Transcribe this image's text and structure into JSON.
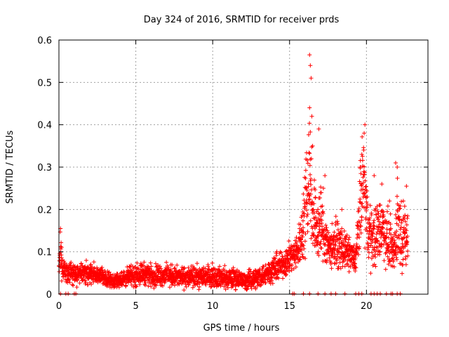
{
  "chart_data": {
    "type": "scatter",
    "title": "Day 324 of 2016, SRMTID for receiver prds",
    "xlabel": "GPS time / hours",
    "ylabel": "SRMTID / TECUs",
    "xlim": [
      0,
      24
    ],
    "ylim": [
      0,
      0.6
    ],
    "x_ticks": [
      0,
      5,
      10,
      15,
      20
    ],
    "x_tick_labels": [
      "0",
      "5",
      "10",
      "15",
      "20"
    ],
    "y_ticks": [
      0,
      0.1,
      0.2,
      0.3,
      0.4,
      0.5,
      0.6
    ],
    "y_tick_labels": [
      "0",
      "0.1",
      "0.2",
      "0.3",
      "0.4",
      "0.5",
      "0.6"
    ],
    "grid": true,
    "marker": "+",
    "series": [
      {
        "name": "SRMTID",
        "color": "#ff0000",
        "envelope": {
          "x": [
            0.0,
            0.1,
            0.2,
            0.5,
            1.0,
            2.0,
            3.0,
            3.5,
            4.0,
            5.0,
            5.5,
            6.0,
            7.0,
            8.0,
            9.0,
            9.8,
            10.5,
            11.0,
            11.5,
            12.0,
            12.5,
            13.0,
            13.5,
            14.0,
            14.5,
            15.0,
            15.5,
            15.9,
            16.1,
            16.3,
            16.5,
            16.8,
            17.0,
            17.3,
            17.6,
            18.0,
            18.3,
            18.7,
            19.0,
            19.3,
            19.6,
            19.8,
            20.0,
            20.3,
            20.6,
            21.0,
            21.4,
            21.8,
            22.0,
            22.3,
            22.6
          ],
          "center": [
            0.05,
            0.11,
            0.06,
            0.05,
            0.045,
            0.05,
            0.04,
            0.03,
            0.035,
            0.045,
            0.05,
            0.045,
            0.045,
            0.04,
            0.04,
            0.045,
            0.04,
            0.035,
            0.04,
            0.03,
            0.035,
            0.04,
            0.05,
            0.06,
            0.07,
            0.085,
            0.1,
            0.16,
            0.25,
            0.3,
            0.2,
            0.15,
            0.17,
            0.13,
            0.11,
            0.12,
            0.11,
            0.1,
            0.09,
            0.08,
            0.2,
            0.28,
            0.18,
            0.13,
            0.14,
            0.16,
            0.13,
            0.1,
            0.17,
            0.14,
            0.13
          ],
          "spread": [
            0.02,
            0.04,
            0.02,
            0.02,
            0.02,
            0.02,
            0.015,
            0.012,
            0.015,
            0.02,
            0.02,
            0.02,
            0.02,
            0.018,
            0.02,
            0.02,
            0.02,
            0.018,
            0.02,
            0.015,
            0.018,
            0.02,
            0.02,
            0.025,
            0.025,
            0.03,
            0.03,
            0.06,
            0.12,
            0.13,
            0.08,
            0.06,
            0.08,
            0.05,
            0.04,
            0.04,
            0.04,
            0.03,
            0.03,
            0.025,
            0.08,
            0.1,
            0.08,
            0.05,
            0.06,
            0.06,
            0.05,
            0.04,
            0.08,
            0.06,
            0.05
          ]
        },
        "points_per_hour": 120,
        "x_range": [
          0.0,
          22.7
        ],
        "peaks": [
          {
            "x": 0.1,
            "y": 0.155
          },
          {
            "x": 16.3,
            "y": 0.565
          },
          {
            "x": 16.35,
            "y": 0.54
          },
          {
            "x": 16.4,
            "y": 0.51
          },
          {
            "x": 16.3,
            "y": 0.44
          },
          {
            "x": 16.45,
            "y": 0.42
          },
          {
            "x": 16.5,
            "y": 0.35
          },
          {
            "x": 16.9,
            "y": 0.39
          },
          {
            "x": 17.3,
            "y": 0.28
          },
          {
            "x": 17.2,
            "y": 0.25
          },
          {
            "x": 18.4,
            "y": 0.2
          },
          {
            "x": 19.9,
            "y": 0.4
          },
          {
            "x": 19.85,
            "y": 0.38
          },
          {
            "x": 19.7,
            "y": 0.33
          },
          {
            "x": 19.6,
            "y": 0.3
          },
          {
            "x": 20.5,
            "y": 0.28
          },
          {
            "x": 21.0,
            "y": 0.26
          },
          {
            "x": 21.9,
            "y": 0.31
          },
          {
            "x": 22.0,
            "y": 0.3
          },
          {
            "x": 22.6,
            "y": 0.255
          },
          {
            "x": 22.4,
            "y": 0.22
          },
          {
            "x": 21.5,
            "y": 0.22
          }
        ],
        "zero_points": [
          0.1,
          0.45,
          0.6,
          1.0,
          1.1,
          15.2,
          15.3,
          15.9,
          16.3,
          16.85,
          17.3,
          17.7,
          18.0,
          18.6,
          19.3,
          19.5,
          19.7,
          20.3,
          20.5,
          20.7,
          20.9,
          21.3,
          21.6,
          21.7,
          22.0,
          22.2
        ]
      }
    ]
  }
}
